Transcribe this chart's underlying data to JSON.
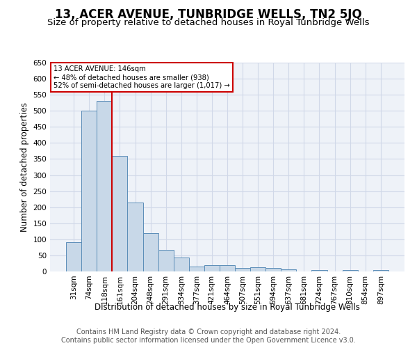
{
  "title": "13, ACER AVENUE, TUNBRIDGE WELLS, TN2 5JQ",
  "subtitle": "Size of property relative to detached houses in Royal Tunbridge Wells",
  "xlabel": "Distribution of detached houses by size in Royal Tunbridge Wells",
  "ylabel": "Number of detached properties",
  "footer1": "Contains HM Land Registry data © Crown copyright and database right 2024.",
  "footer2": "Contains public sector information licensed under the Open Government Licence v3.0.",
  "categories": [
    "31sqm",
    "74sqm",
    "118sqm",
    "161sqm",
    "204sqm",
    "248sqm",
    "291sqm",
    "334sqm",
    "377sqm",
    "421sqm",
    "464sqm",
    "507sqm",
    "551sqm",
    "594sqm",
    "637sqm",
    "681sqm",
    "724sqm",
    "767sqm",
    "810sqm",
    "854sqm",
    "897sqm"
  ],
  "values": [
    90,
    500,
    530,
    360,
    215,
    120,
    68,
    43,
    15,
    20,
    20,
    10,
    12,
    10,
    6,
    0,
    5,
    0,
    5,
    0,
    5
  ],
  "bar_color": "#c8d8e8",
  "bar_edge_color": "#5b8db8",
  "highlight_index": 2,
  "highlight_line_color": "#cc0000",
  "annotation_text_line1": "13 ACER AVENUE: 146sqm",
  "annotation_text_line2": "← 48% of detached houses are smaller (938)",
  "annotation_text_line3": "52% of semi-detached houses are larger (1,017) →",
  "annotation_box_color": "#cc0000",
  "annotation_fill_color": "#ffffff",
  "ylim": [
    0,
    650
  ],
  "yticks": [
    0,
    50,
    100,
    150,
    200,
    250,
    300,
    350,
    400,
    450,
    500,
    550,
    600,
    650
  ],
  "grid_color": "#d0d8e8",
  "bg_color": "#eef2f8",
  "title_fontsize": 12,
  "subtitle_fontsize": 9.5,
  "axis_label_fontsize": 8.5,
  "tick_fontsize": 7.5,
  "footer_fontsize": 7
}
